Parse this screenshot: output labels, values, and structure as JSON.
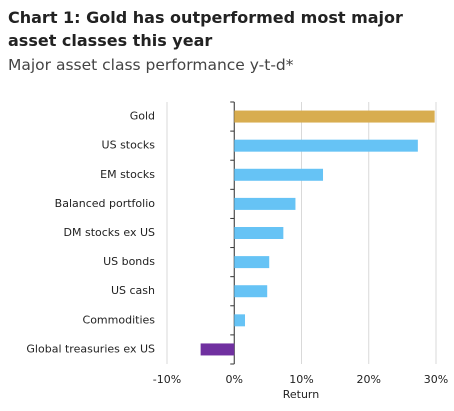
{
  "chart_data": {
    "type": "hbar",
    "title": "Chart 1: Gold has outperformed most major asset classes this year",
    "subtitle": "Major asset class performance y-t-d*",
    "x_label": "Return",
    "categories": [
      "Gold",
      "US stocks",
      "EM stocks",
      "Balanced portfolio",
      "DM stocks ex US",
      "US bonds",
      "US cash",
      "Commodities",
      "Global treasuries ex US"
    ],
    "values": [
      29.8,
      27.3,
      13.2,
      9.1,
      7.3,
      5.2,
      4.9,
      1.6,
      -5
    ],
    "colors": [
      "#d8ad50",
      "#66c3f5",
      "#66c3f5",
      "#66c3f5",
      "#66c3f5",
      "#66c3f5",
      "#66c3f5",
      "#66c3f5",
      "#7030a0"
    ],
    "xlim": [
      -10,
      30
    ],
    "xticks": [
      {
        "value": -10,
        "label": "-10%"
      },
      {
        "value": 0,
        "label": "0%"
      },
      {
        "value": 10,
        "label": "10%"
      },
      {
        "value": 20,
        "label": "20%"
      },
      {
        "value": 30,
        "label": "30%"
      }
    ],
    "grid": true
  }
}
